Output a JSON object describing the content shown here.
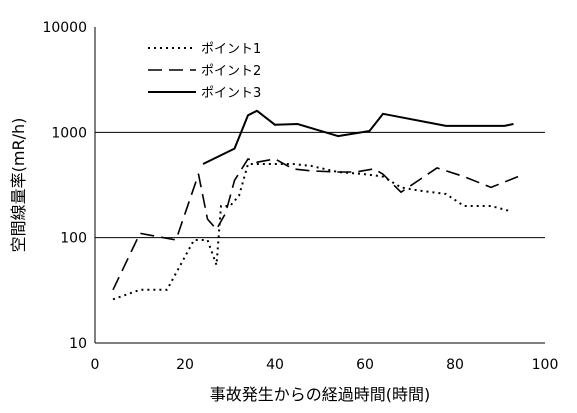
{
  "chart_data": {
    "type": "line",
    "title": "",
    "xlabel": "事故発生からの経過時間(時間)",
    "ylabel": "空間線量率(mR/h)",
    "xlim": [
      0,
      100
    ],
    "ylim": [
      10,
      10000
    ],
    "yscale": "log",
    "x_ticks": [
      0,
      20,
      40,
      60,
      80,
      100
    ],
    "y_ticks": [
      10,
      100,
      1000,
      10000
    ],
    "grid": "horizontal at 100 and 1000",
    "legend": "top-left inside plot",
    "series": [
      {
        "name": "ポイント1",
        "style": "dotted",
        "x": [
          4,
          10,
          16,
          22,
          25,
          27,
          28,
          30,
          32,
          34,
          36,
          40,
          44,
          48,
          54,
          60,
          64,
          68,
          72,
          78,
          82,
          88,
          92
        ],
        "y": [
          26,
          32,
          32,
          95,
          95,
          55,
          200,
          200,
          250,
          500,
          500,
          500,
          500,
          480,
          420,
          400,
          380,
          300,
          280,
          260,
          200,
          200,
          180
        ]
      },
      {
        "name": "ポイント2",
        "style": "dashed",
        "x": [
          4,
          10,
          18,
          23,
          25,
          27,
          29,
          31,
          34,
          36,
          40,
          44,
          48,
          54,
          58,
          62,
          64,
          68,
          76,
          82,
          88,
          94
        ],
        "y": [
          32,
          110,
          95,
          400,
          150,
          120,
          170,
          350,
          560,
          520,
          560,
          450,
          430,
          420,
          420,
          450,
          400,
          270,
          460,
          380,
          300,
          380
        ]
      },
      {
        "name": "ポイント3",
        "style": "solid",
        "x": [
          24,
          31,
          34,
          36,
          40,
          45,
          54,
          61,
          64,
          78,
          91,
          93
        ],
        "y": [
          500,
          700,
          1450,
          1600,
          1180,
          1200,
          920,
          1030,
          1500,
          1150,
          1150,
          1200
        ]
      }
    ]
  },
  "colors": {
    "line": "#000000",
    "background": "#ffffff"
  }
}
